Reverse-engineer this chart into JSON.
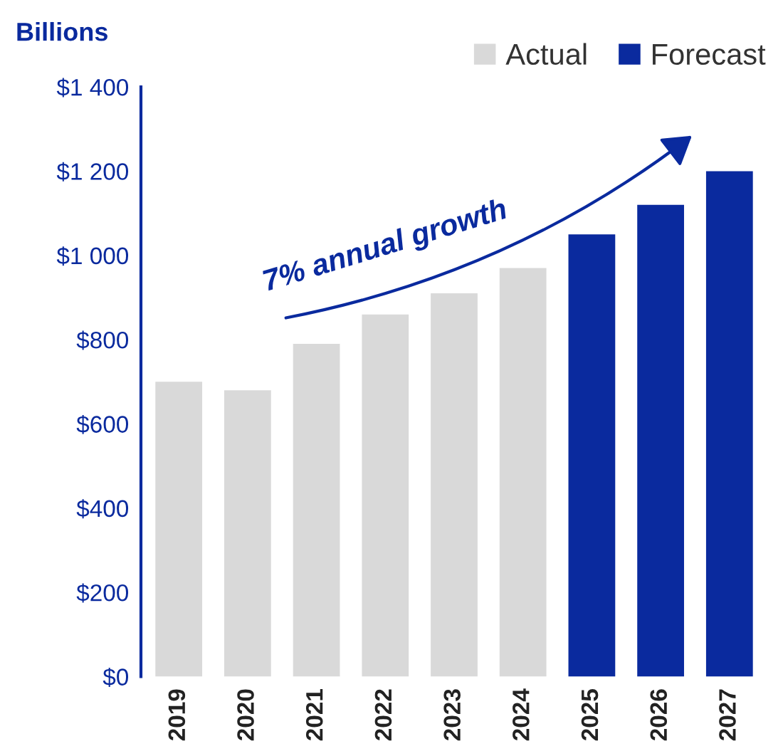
{
  "chart_data": {
    "type": "bar",
    "ylabel": "Billions",
    "categories": [
      "2019",
      "2020",
      "2021",
      "2022",
      "2023",
      "2024",
      "2025",
      "2026",
      "2027"
    ],
    "series": [
      {
        "name": "Actual",
        "color": "#d9d9d9",
        "values": [
          700,
          680,
          790,
          860,
          910,
          970,
          null,
          null,
          null
        ]
      },
      {
        "name": "Forecast",
        "color": "#0a2a9e",
        "values": [
          null,
          null,
          null,
          null,
          null,
          null,
          1050,
          1120,
          1200
        ]
      }
    ],
    "ylim": [
      0,
      1400
    ],
    "yticks": [
      {
        "value": 0,
        "label": "$0"
      },
      {
        "value": 200,
        "label": "$200"
      },
      {
        "value": 400,
        "label": "$400"
      },
      {
        "value": 600,
        "label": "$600"
      },
      {
        "value": 800,
        "label": "$800"
      },
      {
        "value": 1000,
        "label": "$1 000"
      },
      {
        "value": 1200,
        "label": "$1 200"
      },
      {
        "value": 1400,
        "label": "$1 400"
      }
    ],
    "annotations": [
      "7% annual growth"
    ],
    "legend": "top right",
    "grid": false
  }
}
